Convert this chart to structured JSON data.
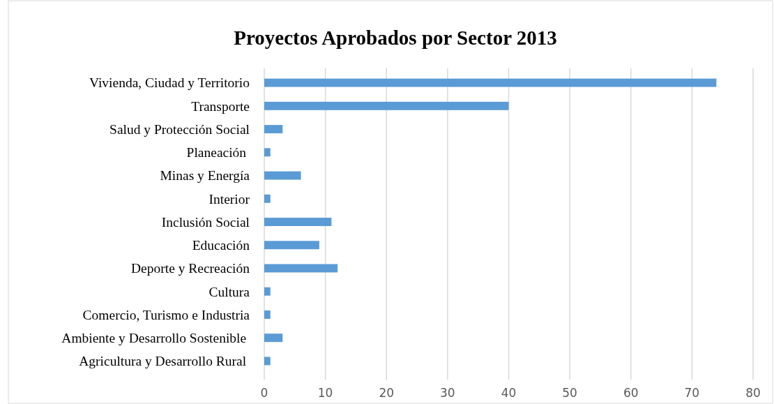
{
  "chart_data": {
    "type": "bar",
    "orientation": "horizontal",
    "title": "Proyectos Aprobados por Sector 2013",
    "categories": [
      "Vivienda, Ciudad y Territorio",
      "Transporte",
      "Salud y Protección Social",
      "Planeación ",
      "Minas y Energía",
      "Interior",
      "Inclusión Social",
      "Educación",
      "Deporte y Recreación",
      "Cultura",
      "Comercio, Turismo e Industria",
      "Ambiente y Desarrollo Sostenible ",
      "Agricultura y Desarrollo Rural "
    ],
    "values": [
      74,
      40,
      3,
      1,
      6,
      1,
      11,
      9,
      12,
      1,
      1,
      3,
      1
    ],
    "color": "#5b9bd5",
    "xlim": [
      0,
      80
    ],
    "xticks": [
      0,
      10,
      20,
      30,
      40,
      50,
      60,
      70,
      80
    ],
    "grid": "x"
  }
}
